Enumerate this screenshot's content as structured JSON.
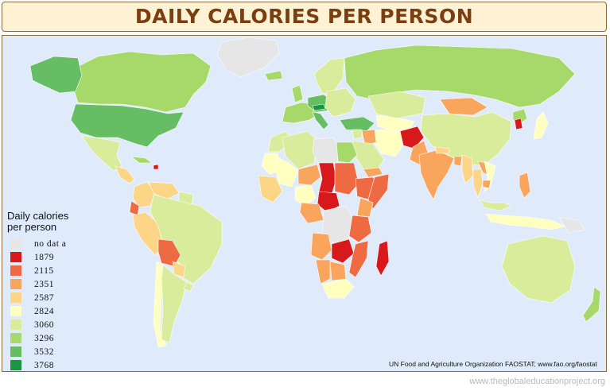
{
  "title": "DAILY CALORIES PER PERSON",
  "legend": {
    "title_line1": "Daily calories",
    "title_line2": "per person",
    "items": [
      {
        "label": "no  dat a",
        "color": "#e6e6e6"
      },
      {
        "label": "1879",
        "color": "#d7191c"
      },
      {
        "label": "2115",
        "color": "#ee6a43"
      },
      {
        "label": "2351",
        "color": "#f9a55e"
      },
      {
        "label": "2587",
        "color": "#fdd586"
      },
      {
        "label": "2824",
        "color": "#ffffbf"
      },
      {
        "label": "3060",
        "color": "#d8ec9b"
      },
      {
        "label": "3296",
        "color": "#a6d96a"
      },
      {
        "label": "3532",
        "color": "#66bd63"
      },
      {
        "label": "3768",
        "color": "#1a9641"
      }
    ]
  },
  "source": "UN Food and Agriculture Organization FAOSTAT; www.fao.org/faostat",
  "footer_url": "www.theglobaleducationproject.org",
  "colors": {
    "ocean": "#dfebfb",
    "border": "#ffffff",
    "frame": "#8a6a38",
    "title_text": "#7a3e10",
    "title_bg": "#fdf2d3"
  },
  "regions": [
    {
      "name": "Greenland",
      "class": "no-data"
    },
    {
      "name": "Canada",
      "class": "3296"
    },
    {
      "name": "Alaska",
      "class": "3532"
    },
    {
      "name": "United States",
      "class": "3532"
    },
    {
      "name": "Mexico",
      "class": "3060"
    },
    {
      "name": "Central America",
      "class": "2587"
    },
    {
      "name": "Cuba",
      "class": "3296"
    },
    {
      "name": "Haiti",
      "class": "1879"
    },
    {
      "name": "Colombia",
      "class": "2587"
    },
    {
      "name": "Venezuela",
      "class": "2587"
    },
    {
      "name": "Guyana",
      "class": "3060"
    },
    {
      "name": "Ecuador",
      "class": "2115"
    },
    {
      "name": "Peru",
      "class": "2587"
    },
    {
      "name": "Brazil",
      "class": "3060"
    },
    {
      "name": "Bolivia",
      "class": "2115"
    },
    {
      "name": "Paraguay",
      "class": "2587"
    },
    {
      "name": "Chile",
      "class": "2824"
    },
    {
      "name": "Argentina",
      "class": "3060"
    },
    {
      "name": "Uruguay",
      "class": "3060"
    },
    {
      "name": "Iceland",
      "class": "3296"
    },
    {
      "name": "Scandinavia",
      "class": "3060"
    },
    {
      "name": "United Kingdom",
      "class": "3296"
    },
    {
      "name": "Western Europe",
      "class": "3296"
    },
    {
      "name": "Central Europe",
      "class": "3532"
    },
    {
      "name": "Austria",
      "class": "3768"
    },
    {
      "name": "Italy",
      "class": "3532"
    },
    {
      "name": "Eastern Europe",
      "class": "3060"
    },
    {
      "name": "Turkey",
      "class": "3532"
    },
    {
      "name": "Russia",
      "class": "3296"
    },
    {
      "name": "Kazakhstan",
      "class": "3060"
    },
    {
      "name": "Central Asia",
      "class": "2824"
    },
    {
      "name": "Mongolia",
      "class": "2351"
    },
    {
      "name": "China",
      "class": "3060"
    },
    {
      "name": "Korea",
      "class": "3296"
    },
    {
      "name": "North Korea",
      "class": "1879"
    },
    {
      "name": "Japan",
      "class": "2824"
    },
    {
      "name": "Afghanistan",
      "class": "1879"
    },
    {
      "name": "Pakistan",
      "class": "2351"
    },
    {
      "name": "Iran",
      "class": "2824"
    },
    {
      "name": "Iraq",
      "class": "2351"
    },
    {
      "name": "Syria",
      "class": "3060"
    },
    {
      "name": "Saudi Arabia",
      "class": "3060"
    },
    {
      "name": "Yemen",
      "class": "2351"
    },
    {
      "name": "India",
      "class": "2351"
    },
    {
      "name": "Nepal",
      "class": "2587"
    },
    {
      "name": "Bangladesh",
      "class": "2351"
    },
    {
      "name": "Myanmar",
      "class": "2587"
    },
    {
      "name": "Thailand",
      "class": "2587"
    },
    {
      "name": "Laos",
      "class": "2351"
    },
    {
      "name": "Vietnam",
      "class": "2824"
    },
    {
      "name": "Cambodia",
      "class": "2351"
    },
    {
      "name": "Malaysia",
      "class": "3060"
    },
    {
      "name": "Philippines",
      "class": "2351"
    },
    {
      "name": "Indonesia",
      "class": "2824"
    },
    {
      "name": "New Guinea",
      "class": "no-data"
    },
    {
      "name": "Australia",
      "class": "3060"
    },
    {
      "name": "New Zealand",
      "class": "3296"
    },
    {
      "name": "Morocco",
      "class": "3060"
    },
    {
      "name": "Algeria",
      "class": "3060"
    },
    {
      "name": "Libya",
      "class": "no-data"
    },
    {
      "name": "Egypt",
      "class": "3296"
    },
    {
      "name": "Mauritania",
      "class": "2824"
    },
    {
      "name": "Mali",
      "class": "2824"
    },
    {
      "name": "Niger",
      "class": "2351"
    },
    {
      "name": "Nigeria",
      "class": "2824"
    },
    {
      "name": "West Africa",
      "class": "2587"
    },
    {
      "name": "Chad",
      "class": "1879"
    },
    {
      "name": "Sudan",
      "class": "2115"
    },
    {
      "name": "Ethiopia",
      "class": "2115"
    },
    {
      "name": "Somalia",
      "class": "2115"
    },
    {
      "name": "Kenya",
      "class": "2351"
    },
    {
      "name": "Central African Rep",
      "class": "1879"
    },
    {
      "name": "Cameroon",
      "class": "2351"
    },
    {
      "name": "DR Congo",
      "class": "no-data"
    },
    {
      "name": "Tanzania",
      "class": "2115"
    },
    {
      "name": "Angola",
      "class": "2351"
    },
    {
      "name": "Zambia",
      "class": "1879"
    },
    {
      "name": "Mozambique",
      "class": "2115"
    },
    {
      "name": "Namibia",
      "class": "2351"
    },
    {
      "name": "Botswana",
      "class": "2351"
    },
    {
      "name": "South Africa",
      "class": "2824"
    },
    {
      "name": "Madagascar",
      "class": "1879"
    }
  ]
}
